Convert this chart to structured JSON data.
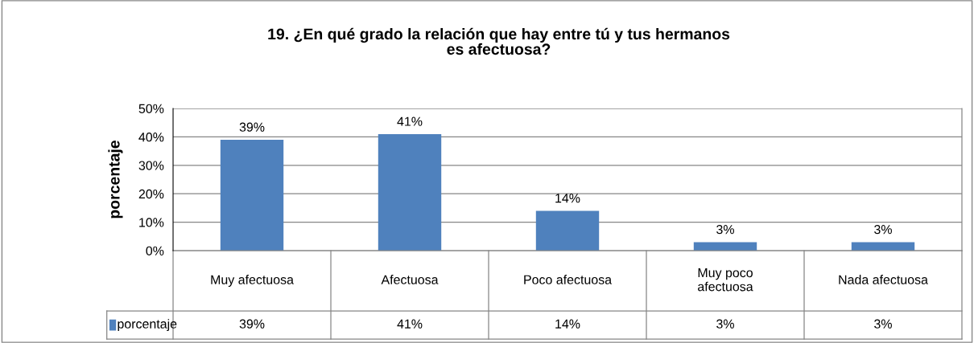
{
  "chart_data": {
    "type": "bar",
    "title": "19. ¿En qué grado la relación que hay entre tú y tus hermanos\nes afectuosa?",
    "ylabel": "porcentaje",
    "categories": [
      "Muy afectuosa",
      "Afectuosa",
      "Poco afectuosa",
      "Muy poco\nafectuosa",
      "Nada afectuosa"
    ],
    "series": [
      {
        "name": "porcentaje",
        "color": "#4f81bd",
        "values": [
          39,
          41,
          14,
          3,
          3
        ],
        "value_labels": [
          "39%",
          "41%",
          "14%",
          "3%",
          "3%"
        ]
      }
    ],
    "ylim": [
      0,
      50
    ],
    "yticks": [
      {
        "value": 0,
        "label": "0%"
      },
      {
        "value": 10,
        "label": "10%"
      },
      {
        "value": 20,
        "label": "20%"
      },
      {
        "value": 30,
        "label": "30%"
      },
      {
        "value": 40,
        "label": "40%"
      },
      {
        "value": 50,
        "label": "50%"
      }
    ],
    "grid": "y",
    "legend": "bottom"
  }
}
